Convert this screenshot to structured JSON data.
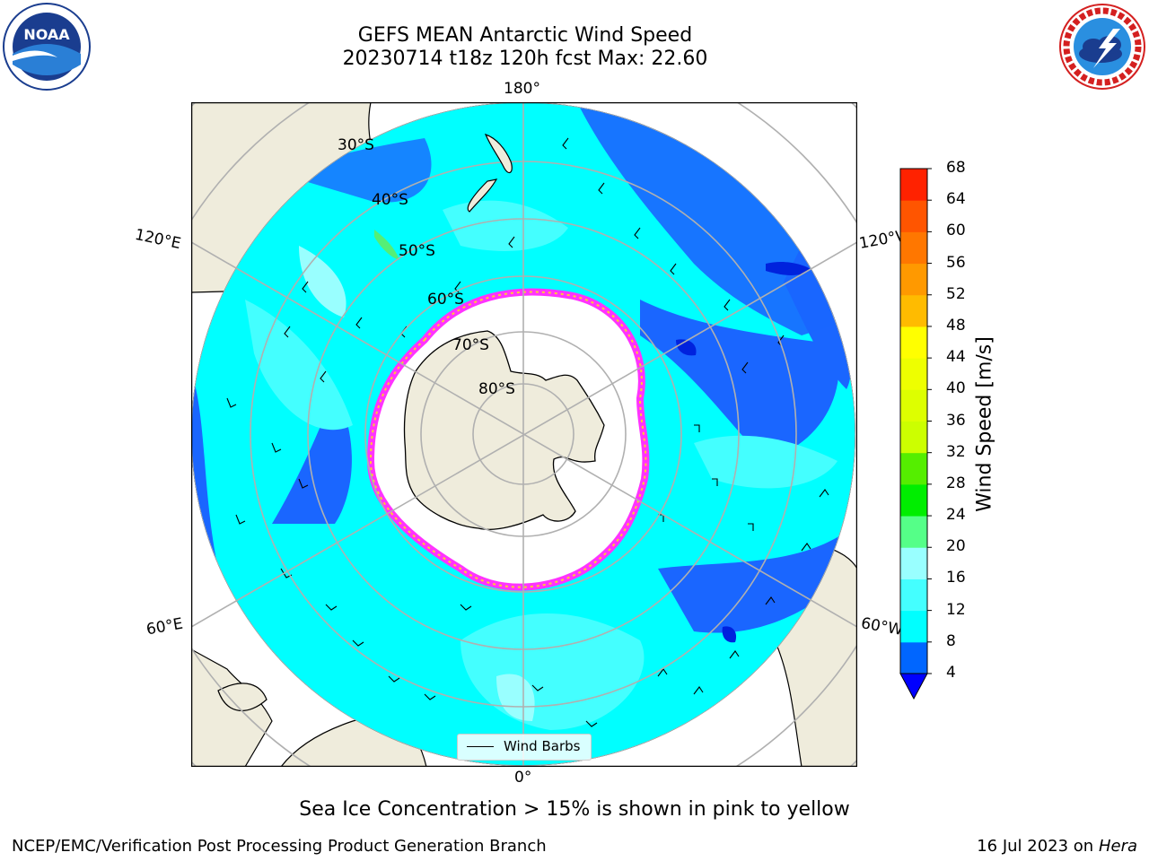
{
  "title": {
    "line1": "GEFS MEAN Antarctic Wind Speed",
    "line2": "20230714 t18z 120h fcst   Max: 22.60"
  },
  "logos": {
    "left": {
      "name": "NOAA",
      "ring_text": "NATIONAL OCEANIC AND ATMOSPHERIC ADMINISTRATION · U.S. DEPARTMENT OF COMMERCE"
    },
    "right": {
      "name": "NATIONAL WEATHER SERVICE"
    }
  },
  "map": {
    "projection": "south-polar-stereographic",
    "longitude_labels": {
      "top": "180°",
      "bottom": "0°",
      "upper_left": "120°E",
      "lower_left": "60°E",
      "upper_right": "120°W",
      "lower_right": "60°W"
    },
    "latitude_labels": [
      "30°S",
      "40°S",
      "50°S",
      "60°S",
      "70°S",
      "80°S"
    ],
    "colors": {
      "land": "#efecdc",
      "ocean_low": "#00ccff",
      "ocean_dark": "#1a66ff",
      "ocean_mid": "#44eeff",
      "ocean_light": "#99ffff",
      "sea_ice_edge": [
        "#ff33ff",
        "#ffcc33"
      ],
      "grid": "#b0b0b0"
    },
    "legend": {
      "label": "Wind Barbs"
    }
  },
  "colorbar": {
    "title": "Wind Speed [m/s]",
    "ticks": [
      "4",
      "8",
      "12",
      "16",
      "20",
      "24",
      "28",
      "32",
      "36",
      "40",
      "44",
      "48",
      "52",
      "56",
      "60",
      "64",
      "68"
    ],
    "colors": [
      "#0066ff",
      "#00ffff",
      "#44ffff",
      "#99ffff",
      "#55ff88",
      "#00ee00",
      "#55ee00",
      "#ccff00",
      "#ddff00",
      "#eeff00",
      "#ffff00",
      "#ffbb00",
      "#ff9900",
      "#ff7700",
      "#ff5500",
      "#ff2200",
      "#ff0000"
    ],
    "extend_color": "#0000ff"
  },
  "caption": "Sea Ice Concentration > 15% is shown in pink to yellow",
  "footer": {
    "left": "NCEP/EMC/Verification Post Processing Product Generation Branch",
    "right_prefix": "16 Jul 2023 on ",
    "right_machine": "Hera"
  }
}
